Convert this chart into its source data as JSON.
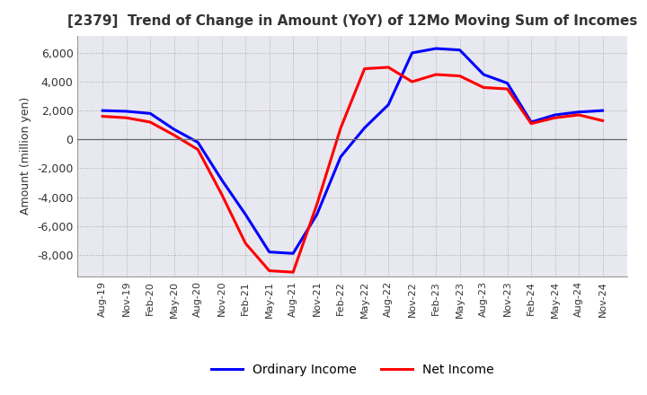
{
  "title": "[2379]  Trend of Change in Amount (YoY) of 12Mo Moving Sum of Incomes",
  "ylabel": "Amount (million yen)",
  "x_labels": [
    "Aug-19",
    "Nov-19",
    "Feb-20",
    "May-20",
    "Aug-20",
    "Nov-20",
    "Feb-21",
    "May-21",
    "Aug-21",
    "Nov-21",
    "Feb-22",
    "May-22",
    "Aug-22",
    "Nov-22",
    "Feb-23",
    "May-23",
    "Aug-23",
    "Nov-23",
    "Feb-24",
    "May-24",
    "Aug-24",
    "Nov-24"
  ],
  "ordinary_income": [
    2000,
    1950,
    1800,
    700,
    -200,
    -2800,
    -5200,
    -7800,
    -7900,
    -5200,
    -1200,
    800,
    2400,
    6000,
    6300,
    6200,
    4500,
    3900,
    1200,
    1700,
    1900,
    2000
  ],
  "net_income": [
    1600,
    1500,
    1200,
    300,
    -700,
    -3800,
    -7200,
    -9100,
    -9200,
    -4500,
    800,
    4900,
    5000,
    4000,
    4500,
    4400,
    3600,
    3500,
    1100,
    1500,
    1700,
    1300
  ],
  "ordinary_color": "#0000ff",
  "net_color": "#ff0000",
  "ylim": [
    -9500,
    7200
  ],
  "yticks": [
    -8000,
    -6000,
    -4000,
    -2000,
    0,
    2000,
    4000,
    6000
  ],
  "legend_labels": [
    "Ordinary Income",
    "Net Income"
  ],
  "background_color": "#ffffff",
  "grid_color": "#aaaaaa",
  "plot_bg_color": "#e8e8f0"
}
